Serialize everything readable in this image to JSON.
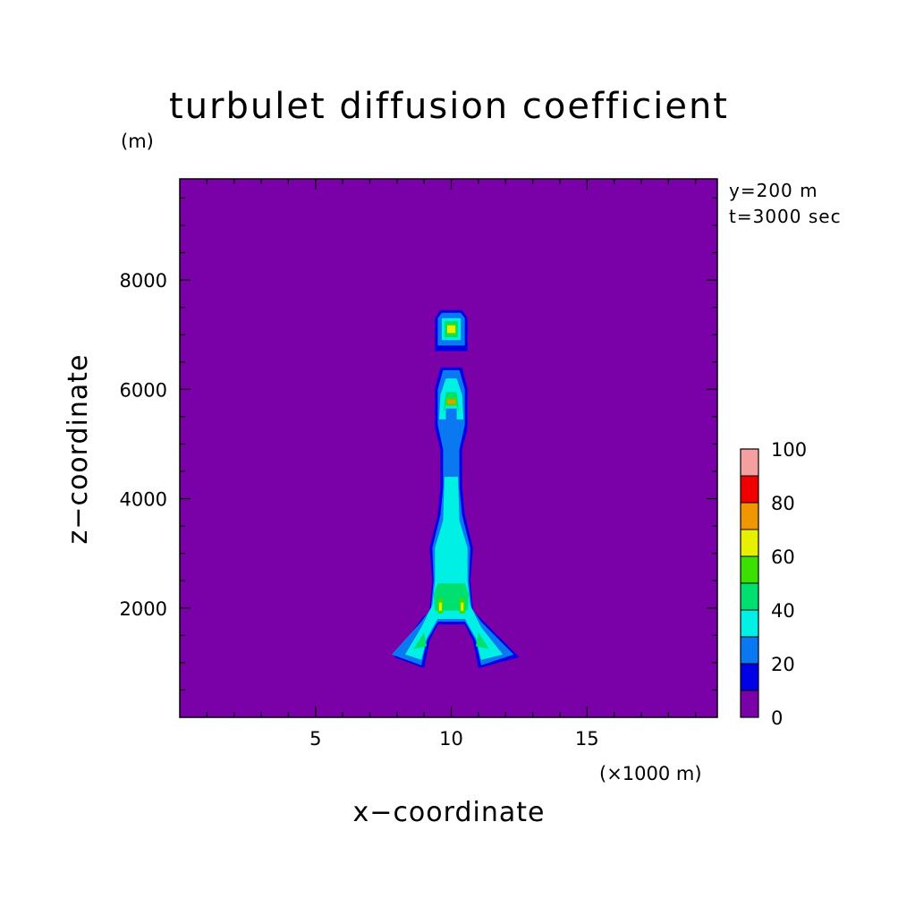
{
  "chart_data": {
    "type": "contour",
    "title": "turbulet diffusion coefficient",
    "xlabel": "x−coordinate",
    "ylabel": "z−coordinate",
    "x_unit": "(×1000 m)",
    "y_unit": "(m)",
    "annotations": [
      "y=200 m",
      "t=3000 sec"
    ],
    "xlim": [
      0,
      19.8
    ],
    "ylim": [
      0,
      9850
    ],
    "x_ticks": [
      5,
      10,
      15
    ],
    "y_ticks": [
      2000,
      4000,
      6000,
      8000
    ],
    "colorbar": {
      "levels": [
        0,
        10,
        20,
        30,
        40,
        50,
        60,
        70,
        80,
        90,
        100
      ],
      "labels": [
        "0",
        "20",
        "40",
        "60",
        "80",
        "100"
      ],
      "colors": [
        "#7a00a8",
        "#0000e6",
        "#0a78f0",
        "#00f0e6",
        "#00e070",
        "#3ce000",
        "#e6f000",
        "#f09600",
        "#f00000",
        "#f5a0a0"
      ]
    },
    "background_value": 0,
    "regions": [
      {
        "level": 10,
        "polygon": [
          [
            7.9,
            1100
          ],
          [
            8.9,
            1800
          ],
          [
            9.2,
            1950
          ],
          [
            9.3,
            2500
          ],
          [
            9.2,
            3100
          ],
          [
            9.5,
            3700
          ],
          [
            9.6,
            4200
          ],
          [
            9.6,
            4900
          ],
          [
            9.4,
            5300
          ],
          [
            9.4,
            6000
          ],
          [
            9.6,
            6400
          ],
          [
            10.4,
            6400
          ],
          [
            10.6,
            6000
          ],
          [
            10.6,
            5300
          ],
          [
            10.4,
            4900
          ],
          [
            10.4,
            4200
          ],
          [
            10.5,
            3700
          ],
          [
            10.8,
            3100
          ],
          [
            10.7,
            2500
          ],
          [
            10.8,
            1950
          ],
          [
            11.1,
            1800
          ],
          [
            12.5,
            1100
          ],
          [
            11.0,
            900
          ],
          [
            10.8,
            1400
          ],
          [
            10.5,
            1700
          ],
          [
            9.5,
            1700
          ],
          [
            9.2,
            1400
          ],
          [
            9.0,
            900
          ]
        ]
      },
      {
        "level": 10,
        "polygon": [
          [
            9.4,
            6700
          ],
          [
            9.4,
            7300
          ],
          [
            9.6,
            7450
          ],
          [
            10.4,
            7450
          ],
          [
            10.6,
            7300
          ],
          [
            10.6,
            6700
          ]
        ]
      },
      {
        "level": 20,
        "polygon": [
          [
            7.8,
            1150
          ],
          [
            8.9,
            1750
          ],
          [
            9.25,
            2000
          ],
          [
            9.35,
            2500
          ],
          [
            9.3,
            3100
          ],
          [
            9.6,
            3700
          ],
          [
            9.7,
            4200
          ],
          [
            9.7,
            4900
          ],
          [
            9.5,
            5350
          ],
          [
            9.5,
            6000
          ],
          [
            9.7,
            6350
          ],
          [
            10.3,
            6350
          ],
          [
            10.5,
            6000
          ],
          [
            10.5,
            5350
          ],
          [
            10.3,
            4900
          ],
          [
            10.3,
            4200
          ],
          [
            10.4,
            3700
          ],
          [
            10.7,
            3100
          ],
          [
            10.65,
            2500
          ],
          [
            10.75,
            2000
          ],
          [
            11.1,
            1750
          ],
          [
            12.3,
            1150
          ],
          [
            11.1,
            950
          ],
          [
            10.9,
            1400
          ],
          [
            10.5,
            1750
          ],
          [
            9.5,
            1750
          ],
          [
            9.1,
            1400
          ],
          [
            8.9,
            950
          ]
        ]
      },
      {
        "level": 20,
        "polygon": [
          [
            9.5,
            6800
          ],
          [
            9.5,
            7300
          ],
          [
            9.65,
            7400
          ],
          [
            10.35,
            7400
          ],
          [
            10.5,
            7300
          ],
          [
            10.5,
            6800
          ]
        ]
      },
      {
        "level": 30,
        "polygon": [
          [
            8.3,
            1150
          ],
          [
            8.9,
            1650
          ],
          [
            9.3,
            2050
          ],
          [
            9.4,
            2500
          ],
          [
            9.4,
            3100
          ],
          [
            9.7,
            3600
          ],
          [
            9.75,
            4400
          ],
          [
            10.25,
            4400
          ],
          [
            10.3,
            3600
          ],
          [
            10.6,
            3100
          ],
          [
            10.6,
            2500
          ],
          [
            10.7,
            2050
          ],
          [
            11.1,
            1650
          ],
          [
            11.9,
            1150
          ],
          [
            11.1,
            1050
          ],
          [
            10.9,
            1450
          ],
          [
            10.5,
            1800
          ],
          [
            9.5,
            1800
          ],
          [
            9.1,
            1450
          ],
          [
            8.9,
            1050
          ]
        ]
      },
      {
        "level": 30,
        "polygon": [
          [
            9.55,
            5450
          ],
          [
            9.6,
            5900
          ],
          [
            9.8,
            6200
          ],
          [
            10.2,
            6200
          ],
          [
            10.4,
            5900
          ],
          [
            10.45,
            5450
          ],
          [
            10.2,
            5450
          ],
          [
            10.2,
            5650
          ],
          [
            9.8,
            5650
          ],
          [
            9.8,
            5450
          ]
        ]
      },
      {
        "level": 30,
        "polygon": [
          [
            9.65,
            6900
          ],
          [
            9.65,
            7300
          ],
          [
            10.35,
            7300
          ],
          [
            10.35,
            6900
          ]
        ]
      },
      {
        "level": 40,
        "polygon": [
          [
            9.4,
            1950
          ],
          [
            9.35,
            2250
          ],
          [
            9.5,
            2450
          ],
          [
            10.5,
            2450
          ],
          [
            10.65,
            2250
          ],
          [
            10.6,
            1950
          ]
        ]
      },
      {
        "level": 40,
        "polygon": [
          [
            9.7,
            5550
          ],
          [
            9.8,
            5950
          ],
          [
            10.2,
            5950
          ],
          [
            10.3,
            5550
          ],
          [
            10.2,
            5700
          ],
          [
            9.8,
            5700
          ]
        ]
      },
      {
        "level": 40,
        "polygon": [
          [
            9.75,
            6950
          ],
          [
            9.75,
            7250
          ],
          [
            10.25,
            7250
          ],
          [
            10.25,
            6950
          ]
        ]
      },
      {
        "level": 40,
        "polygon": [
          [
            8.6,
            1250
          ],
          [
            9.0,
            1550
          ],
          [
            9.1,
            1300
          ]
        ]
      },
      {
        "level": 40,
        "polygon": [
          [
            11.4,
            1250
          ],
          [
            11.0,
            1550
          ],
          [
            10.9,
            1300
          ]
        ]
      },
      {
        "level": 50,
        "polygon": [
          [
            9.5,
            1900
          ],
          [
            9.5,
            2150
          ],
          [
            9.7,
            2200
          ],
          [
            9.7,
            1900
          ]
        ]
      },
      {
        "level": 50,
        "polygon": [
          [
            10.5,
            1900
          ],
          [
            10.5,
            2150
          ],
          [
            10.3,
            2200
          ],
          [
            10.3,
            1900
          ]
        ]
      },
      {
        "level": 50,
        "polygon": [
          [
            9.8,
            5700
          ],
          [
            9.8,
            5850
          ],
          [
            10.2,
            5850
          ],
          [
            10.2,
            5700
          ]
        ]
      },
      {
        "level": 50,
        "polygon": [
          [
            9.82,
            7000
          ],
          [
            9.82,
            7200
          ],
          [
            10.18,
            7200
          ],
          [
            10.18,
            7000
          ]
        ]
      },
      {
        "level": 60,
        "polygon": [
          [
            9.55,
            1950
          ],
          [
            9.55,
            2100
          ],
          [
            9.65,
            2100
          ],
          [
            9.65,
            1950
          ]
        ]
      },
      {
        "level": 60,
        "polygon": [
          [
            10.45,
            1950
          ],
          [
            10.45,
            2100
          ],
          [
            10.35,
            2100
          ],
          [
            10.35,
            1950
          ]
        ]
      },
      {
        "level": 60,
        "polygon": [
          [
            9.85,
            7030
          ],
          [
            9.85,
            7170
          ],
          [
            10.15,
            7170
          ],
          [
            10.15,
            7030
          ]
        ]
      },
      {
        "level": 70,
        "polygon": [
          [
            9.85,
            5740
          ],
          [
            9.85,
            5810
          ],
          [
            10.15,
            5810
          ],
          [
            10.15,
            5740
          ]
        ]
      }
    ]
  }
}
